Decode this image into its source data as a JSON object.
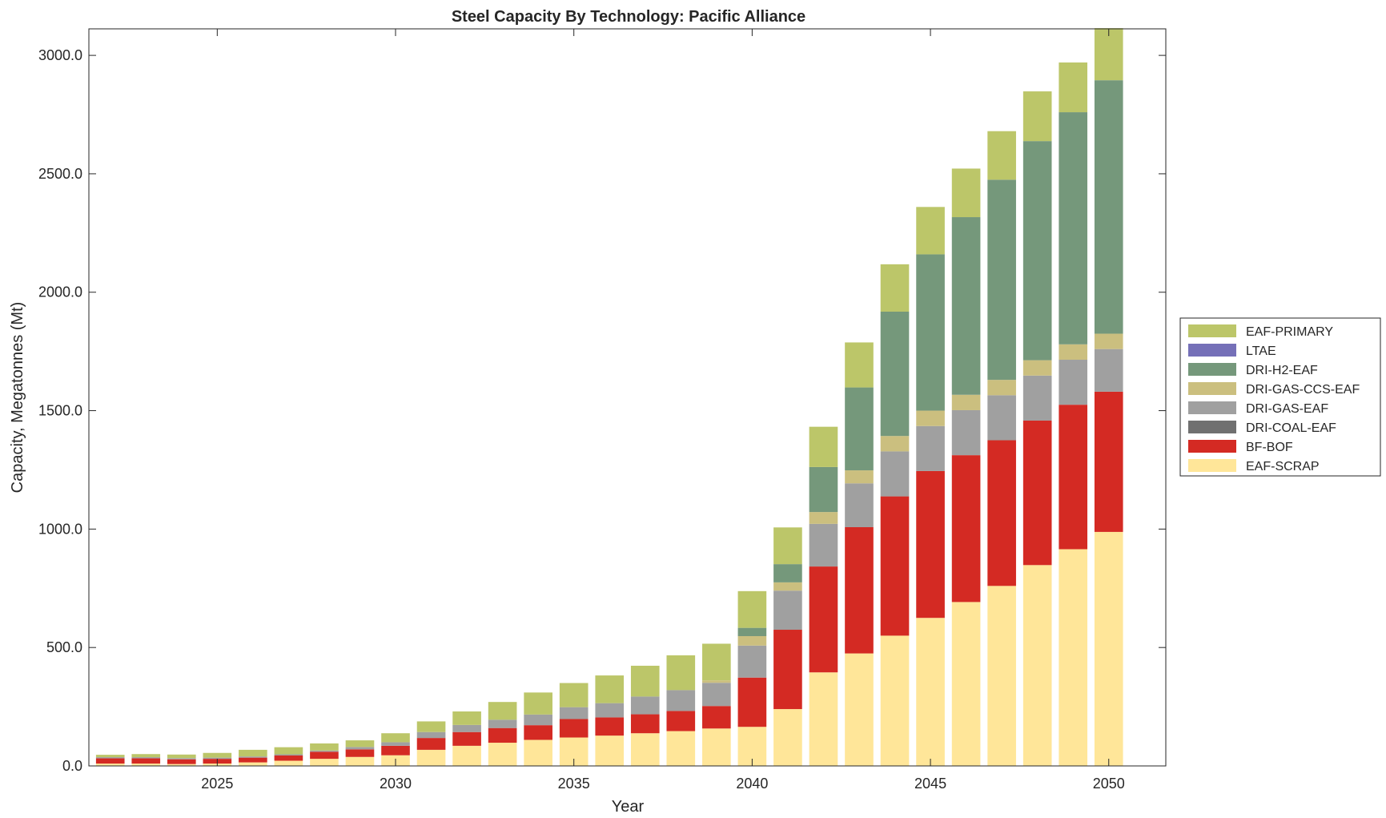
{
  "chart_data": {
    "type": "bar",
    "stacked": true,
    "title": "Steel Capacity By Technology: Pacific Alliance",
    "xlabel": "Year",
    "ylabel": "Capacity, Megatonnes (Mt)",
    "ylim": [
      0,
      3112
    ],
    "xlim": [
      2021.4,
      2051.6
    ],
    "x_ticks": [
      2025,
      2030,
      2035,
      2040,
      2045,
      2050
    ],
    "y_ticks": [
      0,
      500,
      1000,
      1500,
      2000,
      2500,
      3000
    ],
    "y_tick_labels": [
      "0.0",
      "500.0",
      "1000.0",
      "1500.0",
      "2000.0",
      "2500.0",
      "3000.0"
    ],
    "grid": false,
    "legend_position": "right",
    "categories": [
      2022,
      2023,
      2024,
      2025,
      2026,
      2027,
      2028,
      2029,
      2030,
      2031,
      2032,
      2033,
      2034,
      2035,
      2036,
      2037,
      2038,
      2039,
      2040,
      2041,
      2042,
      2043,
      2044,
      2045,
      2046,
      2047,
      2048,
      2049,
      2050
    ],
    "series": [
      {
        "name": "EAF-SCRAP",
        "color": "#FFE699",
        "values": [
          10,
          10,
          8,
          10,
          15,
          22,
          30,
          38,
          45,
          68,
          85,
          98,
          110,
          120,
          128,
          138,
          147,
          158,
          165,
          240,
          395,
          475,
          550,
          625,
          692,
          760,
          848,
          915,
          988
        ]
      },
      {
        "name": "BF-BOF",
        "color": "#D42A23",
        "values": [
          22,
          22,
          20,
          20,
          20,
          22,
          30,
          32,
          40,
          50,
          58,
          62,
          62,
          78,
          77,
          80,
          85,
          95,
          208,
          335,
          447,
          533,
          588,
          620,
          620,
          615,
          610,
          610,
          592
        ]
      },
      {
        "name": "DRI-COAL-EAF",
        "color": "#707070",
        "values": [
          0,
          0,
          0,
          0,
          0,
          0,
          0,
          0,
          0,
          0,
          0,
          0,
          0,
          0,
          0,
          0,
          0,
          0,
          0,
          0,
          0,
          0,
          0,
          0,
          0,
          0,
          0,
          0,
          0
        ]
      },
      {
        "name": "DRI-GAS-EAF",
        "color": "#A0A0A0",
        "values": [
          5,
          5,
          5,
          5,
          5,
          5,
          5,
          10,
          15,
          25,
          30,
          35,
          45,
          50,
          60,
          75,
          88,
          98,
          135,
          165,
          180,
          185,
          190,
          190,
          190,
          190,
          190,
          190,
          180
        ]
      },
      {
        "name": "DRI-GAS-CCS-EAF",
        "color": "#CBBF7F",
        "values": [
          0,
          0,
          0,
          0,
          0,
          0,
          0,
          0,
          0,
          0,
          0,
          0,
          0,
          0,
          0,
          0,
          0,
          10,
          40,
          35,
          50,
          55,
          65,
          65,
          65,
          65,
          65,
          65,
          65
        ]
      },
      {
        "name": "DRI-H2-EAF",
        "color": "#75987B",
        "values": [
          0,
          0,
          0,
          0,
          0,
          0,
          0,
          0,
          0,
          0,
          0,
          0,
          0,
          0,
          0,
          0,
          0,
          0,
          35,
          77,
          190,
          350,
          525,
          660,
          750,
          845,
          925,
          980,
          1070
        ]
      },
      {
        "name": "LTAE",
        "color": "#7570B8",
        "values": [
          0,
          0,
          0,
          0,
          0,
          0,
          0,
          0,
          0,
          0,
          0,
          0,
          0,
          0,
          0,
          0,
          0,
          0,
          0,
          0,
          0,
          0,
          0,
          0,
          0,
          0,
          0,
          0,
          0
        ]
      },
      {
        "name": "EAF-PRIMARY",
        "color": "#BCC669",
        "values": [
          10,
          13,
          15,
          20,
          28,
          30,
          30,
          28,
          38,
          45,
          57,
          75,
          93,
          102,
          117,
          130,
          147,
          155,
          155,
          155,
          170,
          190,
          200,
          200,
          205,
          205,
          210,
          210,
          220
        ]
      }
    ]
  }
}
